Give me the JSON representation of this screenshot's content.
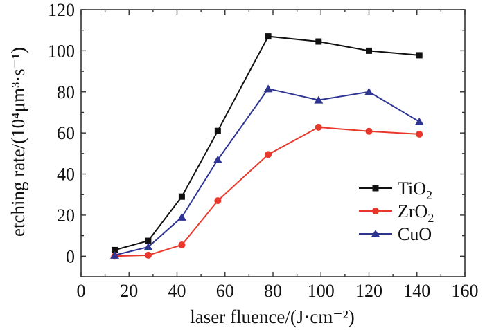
{
  "chart_data": {
    "type": "line",
    "title": "",
    "xlabel": "laser fluence/(J·cm⁻²)",
    "ylabel": "etching rate/(10⁴μm³·s⁻¹)",
    "xlim": [
      0,
      160
    ],
    "ylim": [
      -10,
      120
    ],
    "xticks": [
      0,
      20,
      40,
      60,
      80,
      100,
      120,
      140,
      160
    ],
    "yticks": [
      0,
      20,
      40,
      60,
      80,
      100,
      120
    ],
    "grid": false,
    "legend_position": "lower-right",
    "x": [
      14,
      28,
      42,
      57,
      78,
      99,
      120,
      141
    ],
    "series": [
      {
        "name": "TiO2",
        "label_main": "TiO",
        "label_sub": "2",
        "color": "#111111",
        "marker": "square",
        "values": [
          3,
          7.5,
          29,
          61,
          107,
          104.5,
          100,
          97.8
        ]
      },
      {
        "name": "ZrO2",
        "label_main": "ZrO",
        "label_sub": "2",
        "color": "#e8382b",
        "marker": "circle",
        "values": [
          0,
          0.5,
          5.5,
          27,
          49.5,
          62.8,
          60.8,
          59.4
        ]
      },
      {
        "name": "CuO",
        "label_main": "CuO",
        "label_sub": "",
        "color": "#2e3590",
        "marker": "triangle",
        "values": [
          0.5,
          4.5,
          19,
          47,
          81.5,
          76,
          80,
          65.5
        ]
      }
    ]
  }
}
